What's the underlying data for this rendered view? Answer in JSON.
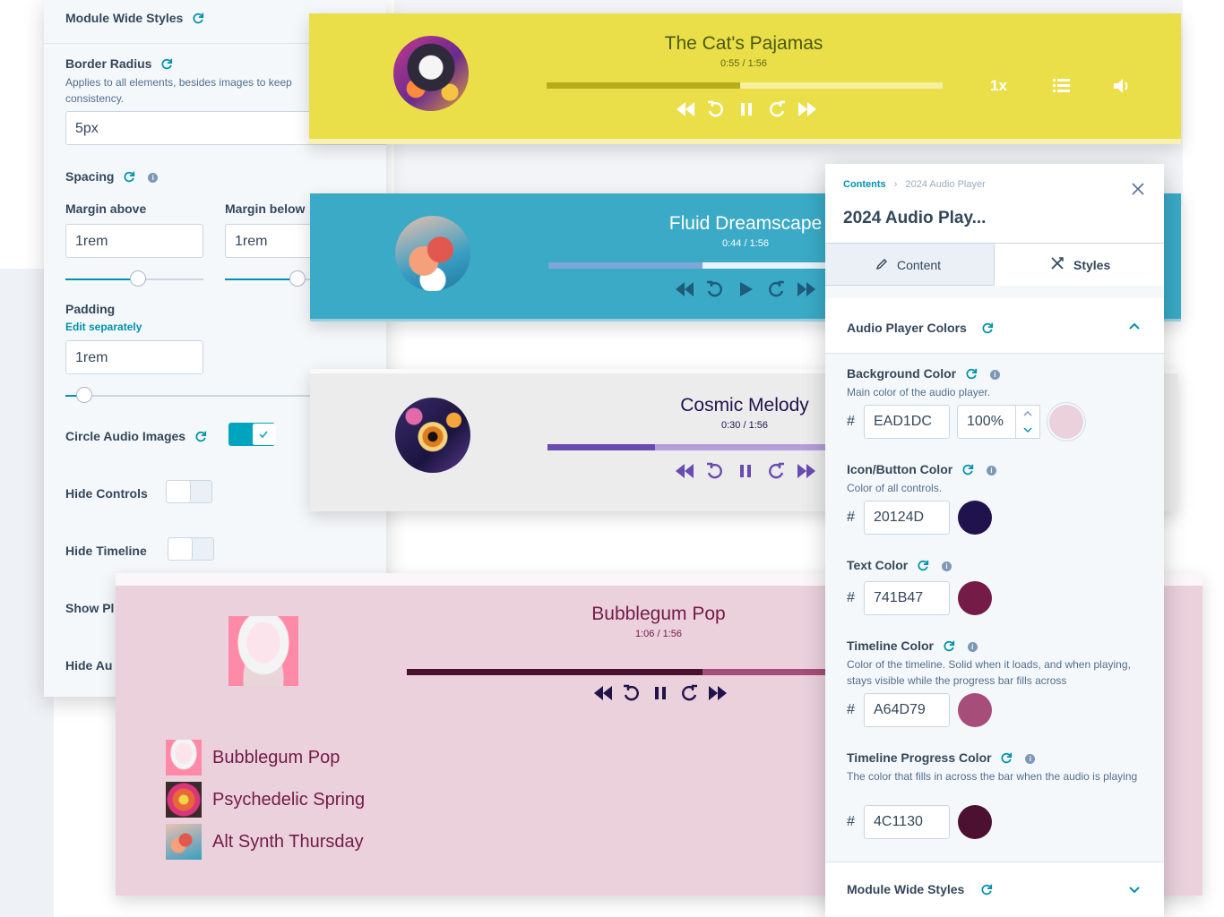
{
  "left_panel": {
    "module_wide_styles": "Module Wide Styles",
    "border_radius": {
      "label": "Border Radius",
      "help": "Applies to all elements, besides images to keep consistency.",
      "value": "5px"
    },
    "spacing": {
      "label": "Spacing",
      "margin_above_label": "Margin above",
      "margin_above_value": "1rem",
      "margin_below_label": "Margin below",
      "margin_below_value": "1rem"
    },
    "padding": {
      "label": "Padding",
      "edit_link": "Edit separately",
      "value": "1rem"
    },
    "circle_audio_images": {
      "label": "Circle Audio Images",
      "on": true
    },
    "hide_controls": {
      "label": "Hide Controls",
      "on": false
    },
    "hide_timeline": {
      "label": "Hide Timeline",
      "on": false
    },
    "show_playlist_partial": "Show Pl",
    "hide_audio_partial": "Hide Au"
  },
  "players": [
    {
      "title": "The Cat's Pajamas",
      "time": "0:55 / 1:56",
      "speed": "1x",
      "progress": 0.49,
      "bg": "#eadf48",
      "track": "#f5ef9e",
      "fill": "#b8ab1c",
      "icon": "#ffffff",
      "text": "#5a6a13",
      "state": "pause"
    },
    {
      "title": "Fluid Dreamscape",
      "time": "0:44 / 1:56",
      "progress": 0.56,
      "bg": "#3aaac6",
      "track": "#e8f4fa",
      "fill": "#7fa6d9",
      "icon": "#1f5b7a",
      "text": "#ffffff",
      "state": "play"
    },
    {
      "title": "Cosmic Melody",
      "time": "0:30 / 1:56",
      "progress": 0.39,
      "bg": "#ececec",
      "track": "#b39ddb",
      "fill": "#6a4bb0",
      "icon": "#6a4bb0",
      "text": "#20124d",
      "state": "pause"
    },
    {
      "title": "Bubblegum Pop",
      "time": "1:06 / 1:56",
      "progress": 0.71,
      "bg": "#ead1dc",
      "track": "#a64d79",
      "fill": "#4c1130",
      "icon": "#20124d",
      "text": "#741b47",
      "state": "pause"
    }
  ],
  "playlist": [
    {
      "name": "Bubblegum Pop"
    },
    {
      "name": "Psychedelic Spring"
    },
    {
      "name": "Alt Synth Thursday"
    }
  ],
  "right_panel": {
    "breadcrumb_root": "Contents",
    "breadcrumb_current": "2024 Audio Player",
    "title": "2024 Audio Play...",
    "tab_content": "Content",
    "tab_styles": "Styles",
    "section_title": "Audio Player Colors",
    "background_color": {
      "label": "Background Color",
      "help": "Main color of the audio player.",
      "hex": "EAD1DC",
      "opacity": "100%",
      "swatch": "#ead1dc"
    },
    "icon_color": {
      "label": "Icon/Button Color",
      "help": "Color of all controls.",
      "hex": "20124D",
      "swatch": "#20124d"
    },
    "text_color": {
      "label": "Text Color",
      "hex": "741B47",
      "swatch": "#741b47"
    },
    "timeline_color": {
      "label": "Timeline Color",
      "help": "Color of the timeline. Solid when it loads, and when playing, stays visible while the progress bar fills across",
      "hex": "A64D79",
      "swatch": "#a64d79"
    },
    "timeline_progress_color": {
      "label": "Timeline Progress Color",
      "help": "The color that fills in across the bar when the audio is playing",
      "hex": "4C1130",
      "swatch": "#4c1130"
    },
    "module_wide_styles": "Module Wide Styles",
    "hash": "#"
  }
}
